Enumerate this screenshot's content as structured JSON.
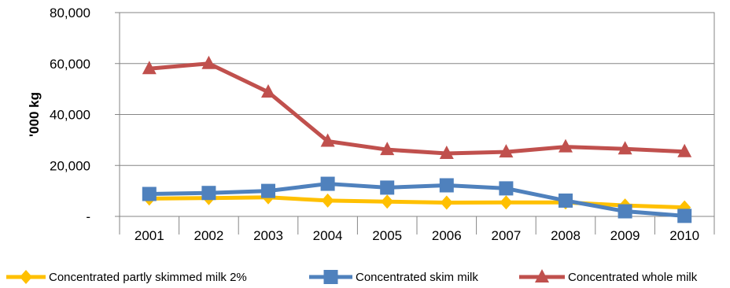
{
  "chart_data": {
    "type": "line",
    "title": "",
    "xlabel": "",
    "ylabel": "'000 kg",
    "categories": [
      "2001",
      "2002",
      "2003",
      "2004",
      "2005",
      "2006",
      "2007",
      "2008",
      "2009",
      "2010"
    ],
    "ylim": [
      0,
      80000
    ],
    "yticks": [
      0,
      20000,
      40000,
      60000,
      80000
    ],
    "ytick_labels": [
      "-",
      "20,000",
      "40,000",
      "60,000",
      "80,000"
    ],
    "grid": "horizontal",
    "legend_position": "bottom",
    "series": [
      {
        "name": "Concentrated partly skimmed milk 2%",
        "color": "#FFC000",
        "marker": "diamond",
        "values": [
          7000,
          7200,
          7500,
          6200,
          5800,
          5400,
          5500,
          5500,
          4300,
          3500
        ]
      },
      {
        "name": "Concentrated skim milk",
        "color": "#4F81BD",
        "marker": "square",
        "values": [
          8800,
          9200,
          10000,
          12800,
          11300,
          12200,
          11000,
          6200,
          2000,
          200
        ]
      },
      {
        "name": "Concentrated whole milk",
        "color": "#C0504D",
        "marker": "triangle",
        "values": [
          58000,
          60000,
          48800,
          29500,
          26200,
          24700,
          25300,
          27300,
          26500,
          25400
        ]
      }
    ]
  }
}
